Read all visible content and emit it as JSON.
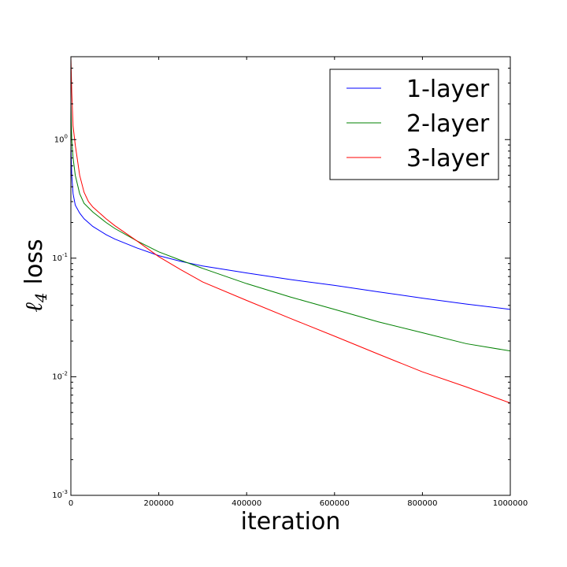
{
  "chart_data": {
    "type": "line",
    "title": "",
    "xlabel": "iteration",
    "ylabel": "loss",
    "ylabel_math": "ℓ",
    "ylabel_math_sub": "4",
    "xlim": [
      0,
      1000000
    ],
    "ylim": [
      0.001,
      5
    ],
    "yscale": "log",
    "grid": false,
    "legend_position": "top-right",
    "x_ticks": [
      0,
      200000,
      400000,
      600000,
      800000,
      1000000
    ],
    "x_tick_labels": [
      "0",
      "200000",
      "400000",
      "600000",
      "800000",
      "1000000"
    ],
    "y_ticks": [
      {
        "value": 0.001,
        "base": "10",
        "exp": "-3"
      },
      {
        "value": 0.01,
        "base": "10",
        "exp": "-2"
      },
      {
        "value": 0.1,
        "base": "10",
        "exp": "-1"
      },
      {
        "value": 1,
        "base": "10",
        "exp": "0"
      }
    ],
    "series": [
      {
        "name": "1-layer",
        "color": "#0000ff",
        "x": [
          0,
          2000,
          5000,
          10000,
          20000,
          30000,
          50000,
          80000,
          100000,
          150000,
          200000,
          250000,
          300000,
          400000,
          500000,
          600000,
          700000,
          800000,
          900000,
          1000000
        ],
        "y": [
          0.9,
          0.5,
          0.35,
          0.28,
          0.24,
          0.215,
          0.185,
          0.158,
          0.145,
          0.122,
          0.105,
          0.094,
          0.086,
          0.075,
          0.066,
          0.059,
          0.052,
          0.046,
          0.041,
          0.037
        ]
      },
      {
        "name": "2-layer",
        "color": "#008000",
        "x": [
          0,
          2000,
          5000,
          10000,
          20000,
          30000,
          50000,
          80000,
          100000,
          150000,
          200000,
          250000,
          300000,
          400000,
          500000,
          600000,
          700000,
          800000,
          900000,
          1000000
        ],
        "y": [
          2.0,
          1.0,
          0.7,
          0.5,
          0.35,
          0.29,
          0.245,
          0.2,
          0.178,
          0.14,
          0.113,
          0.096,
          0.082,
          0.061,
          0.047,
          0.037,
          0.029,
          0.0235,
          0.019,
          0.0165
        ]
      },
      {
        "name": "3-layer",
        "color": "#ff0000",
        "x": [
          0,
          2000,
          5000,
          10000,
          20000,
          30000,
          40000,
          50000,
          80000,
          100000,
          150000,
          200000,
          250000,
          300000,
          400000,
          500000,
          600000,
          700000,
          800000,
          900000,
          1000000
        ],
        "y": [
          5.0,
          2.5,
          1.3,
          0.9,
          0.5,
          0.36,
          0.3,
          0.27,
          0.215,
          0.188,
          0.14,
          0.103,
          0.08,
          0.063,
          0.044,
          0.031,
          0.022,
          0.0155,
          0.011,
          0.0082,
          0.006
        ]
      }
    ]
  }
}
